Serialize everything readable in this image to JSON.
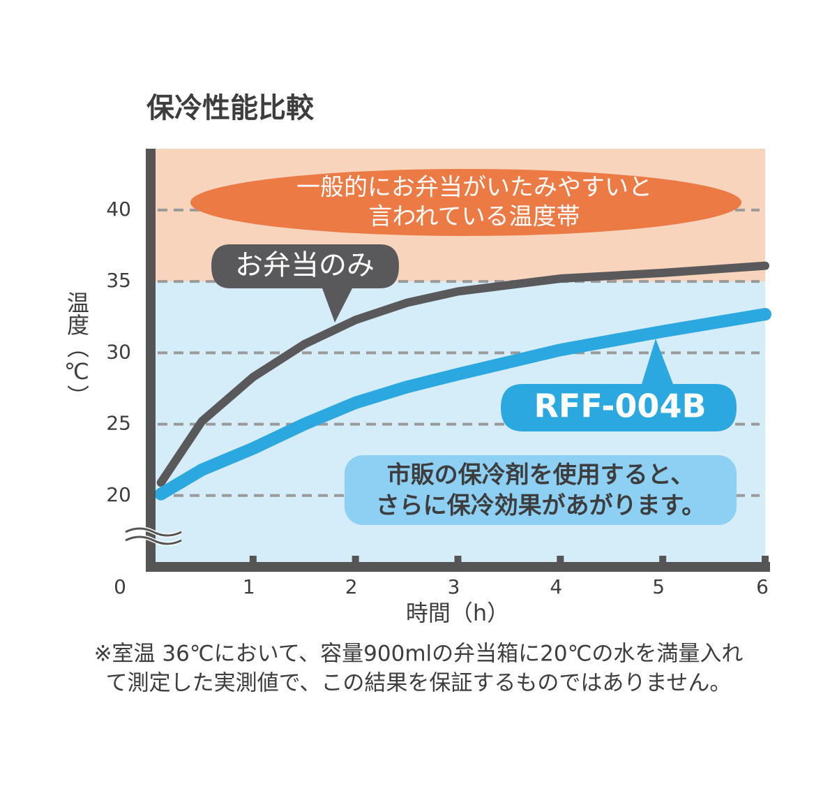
{
  "chart_data": {
    "type": "line",
    "title": "保冷性能比較",
    "x_label": "時間（h）",
    "y_label": "温度（℃）",
    "x": [
      0.1,
      0.5,
      1,
      1.5,
      2,
      2.5,
      3,
      4,
      5,
      6
    ],
    "xlim": [
      0,
      6
    ],
    "xticks": [
      0,
      1,
      2,
      3,
      4,
      5,
      6
    ],
    "ylim": [
      15,
      44.3
    ],
    "yticks": [
      20,
      25,
      30,
      35,
      40
    ],
    "grid": true,
    "warm_zone": {
      "from": 35,
      "color": "#f9d4bd",
      "label": [
        "一般的にお弁当がいたみやすいと",
        "言われている温度帯"
      ]
    },
    "series": [
      {
        "name": "お弁当のみ",
        "color": "#59595b",
        "values": [
          20.9,
          25.2,
          28.3,
          30.6,
          32.3,
          33.5,
          34.3,
          35.2,
          35.6,
          36.1
        ]
      },
      {
        "name": "RFF-004B",
        "color": "#2ba8e0",
        "values": [
          20.1,
          21.8,
          23.3,
          25.0,
          26.5,
          27.6,
          28.5,
          30.2,
          31.5,
          32.7
        ]
      }
    ],
    "note": [
      "市販の保冷剤を使用すると、",
      "さらに保冷効果があがります。"
    ],
    "footnote": [
      "※室温 36℃において、容量900mlの弁当箱に20℃の水を満量入れ",
      "て測定した実測値で、この結果を保証するものではありません。"
    ]
  }
}
